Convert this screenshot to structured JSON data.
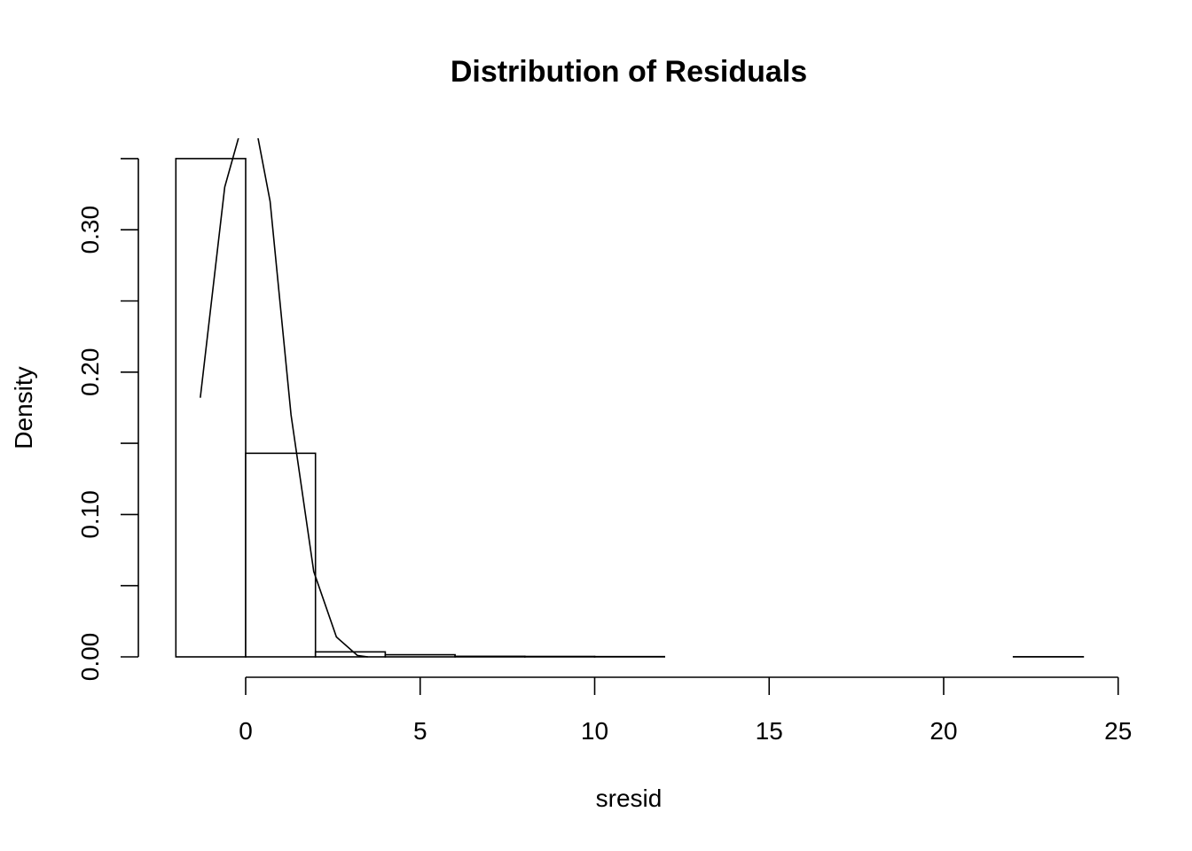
{
  "chart_data": {
    "type": "bar",
    "title": "Distribution of Residuals",
    "xlabel": "sresid",
    "ylabel": "Density",
    "xlim": [
      -2,
      25
    ],
    "ylim": [
      0,
      0.35
    ],
    "x_ticks": [
      0,
      5,
      10,
      15,
      20,
      25
    ],
    "x_tick_labels": [
      "0",
      "5",
      "10",
      "15",
      "20",
      "25"
    ],
    "y_ticks": [
      0,
      0.05,
      0.1,
      0.15,
      0.2,
      0.25,
      0.3,
      0.35
    ],
    "y_tick_labels": [
      "0.00",
      "",
      "0.10",
      "",
      "0.20",
      "",
      "0.30",
      ""
    ],
    "grid": false,
    "histogram": {
      "bins": [
        {
          "x0": -2,
          "x1": 0,
          "density": 0.35
        },
        {
          "x0": 0,
          "x1": 2,
          "density": 0.143
        },
        {
          "x0": 2,
          "x1": 4,
          "density": 0.0035
        },
        {
          "x0": 4,
          "x1": 6,
          "density": 0.0015
        },
        {
          "x0": 6,
          "x1": 8,
          "density": 0.0004
        },
        {
          "x0": 8,
          "x1": 10,
          "density": 0.0003
        },
        {
          "x0": 10,
          "x1": 12,
          "density": 0.0002
        },
        {
          "x0": 12,
          "x1": 14,
          "density": 0
        },
        {
          "x0": 14,
          "x1": 16,
          "density": 0
        },
        {
          "x0": 16,
          "x1": 18,
          "density": 0
        },
        {
          "x0": 18,
          "x1": 20,
          "density": 0
        },
        {
          "x0": 20,
          "x1": 22,
          "density": 0
        },
        {
          "x0": 22,
          "x1": 24,
          "density": 0.0001
        }
      ]
    },
    "density_curve": {
      "x": [
        -1.3,
        -0.6,
        -0.2,
        0.35,
        0.7,
        1.3,
        1.95,
        2.6,
        3.2,
        3.5
      ],
      "y": [
        0.182,
        0.33,
        0.365,
        0.365,
        0.32,
        0.17,
        0.06,
        0.014,
        0.001,
        0
      ]
    }
  }
}
